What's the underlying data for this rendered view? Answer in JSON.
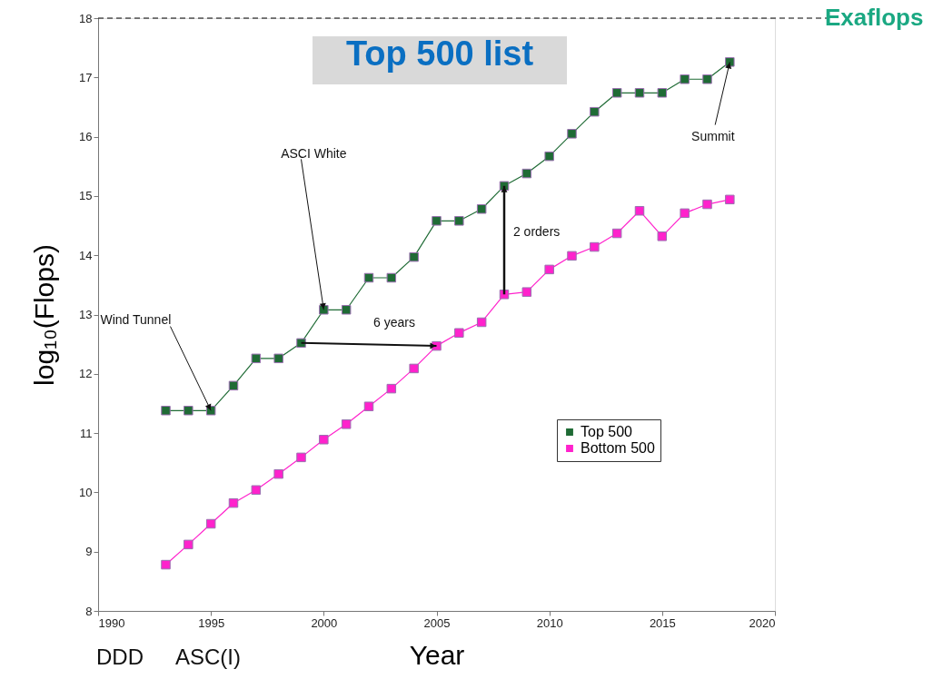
{
  "chart_data": {
    "type": "line",
    "title": "Top 500 list",
    "xlabel": "Year",
    "ylabel": "log₁₀(Flops)",
    "x": [
      1993,
      1994,
      1995,
      1996,
      1997,
      1998,
      1999,
      2000,
      2001,
      2002,
      2003,
      2004,
      2005,
      2006,
      2007,
      2008,
      2009,
      2010,
      2011,
      2012,
      2013,
      2014,
      2015,
      2016,
      2017,
      2018
    ],
    "series": [
      {
        "name": "Top 500",
        "color": "#1f6b35",
        "values": [
          11.38,
          11.38,
          11.38,
          11.8,
          12.26,
          12.26,
          12.52,
          13.08,
          13.08,
          13.62,
          13.62,
          13.97,
          14.58,
          14.58,
          14.78,
          15.17,
          15.38,
          15.67,
          16.05,
          16.42,
          16.74,
          16.74,
          16.74,
          16.97,
          16.97,
          17.26
        ]
      },
      {
        "name": "Bottom 500",
        "color": "#ff22cc",
        "values": [
          8.78,
          9.12,
          9.47,
          9.82,
          10.04,
          10.31,
          10.59,
          10.89,
          11.15,
          11.45,
          11.75,
          12.09,
          12.47,
          12.69,
          12.87,
          13.34,
          13.38,
          13.76,
          13.99,
          14.14,
          14.37,
          14.75,
          14.32,
          14.71,
          14.86,
          14.94
        ]
      }
    ],
    "xlim": [
      1990,
      2020
    ],
    "xticks": [
      1990,
      1995,
      2000,
      2005,
      2010,
      2015,
      2020
    ],
    "ylim": [
      8,
      18
    ],
    "yticks": [
      8,
      9,
      10,
      11,
      12,
      13,
      14,
      15,
      16,
      17,
      18
    ],
    "ref_lines": [
      {
        "axis": "y",
        "value": 18,
        "label": "Exaflops",
        "color": "#000000",
        "line_style": "dashed"
      }
    ],
    "annotations": [
      {
        "text": "Wind Tunnel",
        "x": 1995,
        "y": 11.38
      },
      {
        "text": "ASCI White",
        "x": 2000,
        "y": 13.08
      },
      {
        "text": "Summit",
        "x": 2018,
        "y": 17.26
      },
      {
        "text": "6 years",
        "x": 2005,
        "y": 12.47
      },
      "2 orders",
      "DDD",
      "ASC(I)"
    ],
    "marker": "square",
    "line_style": "solid",
    "legend": "bottom right",
    "grid": false
  }
}
